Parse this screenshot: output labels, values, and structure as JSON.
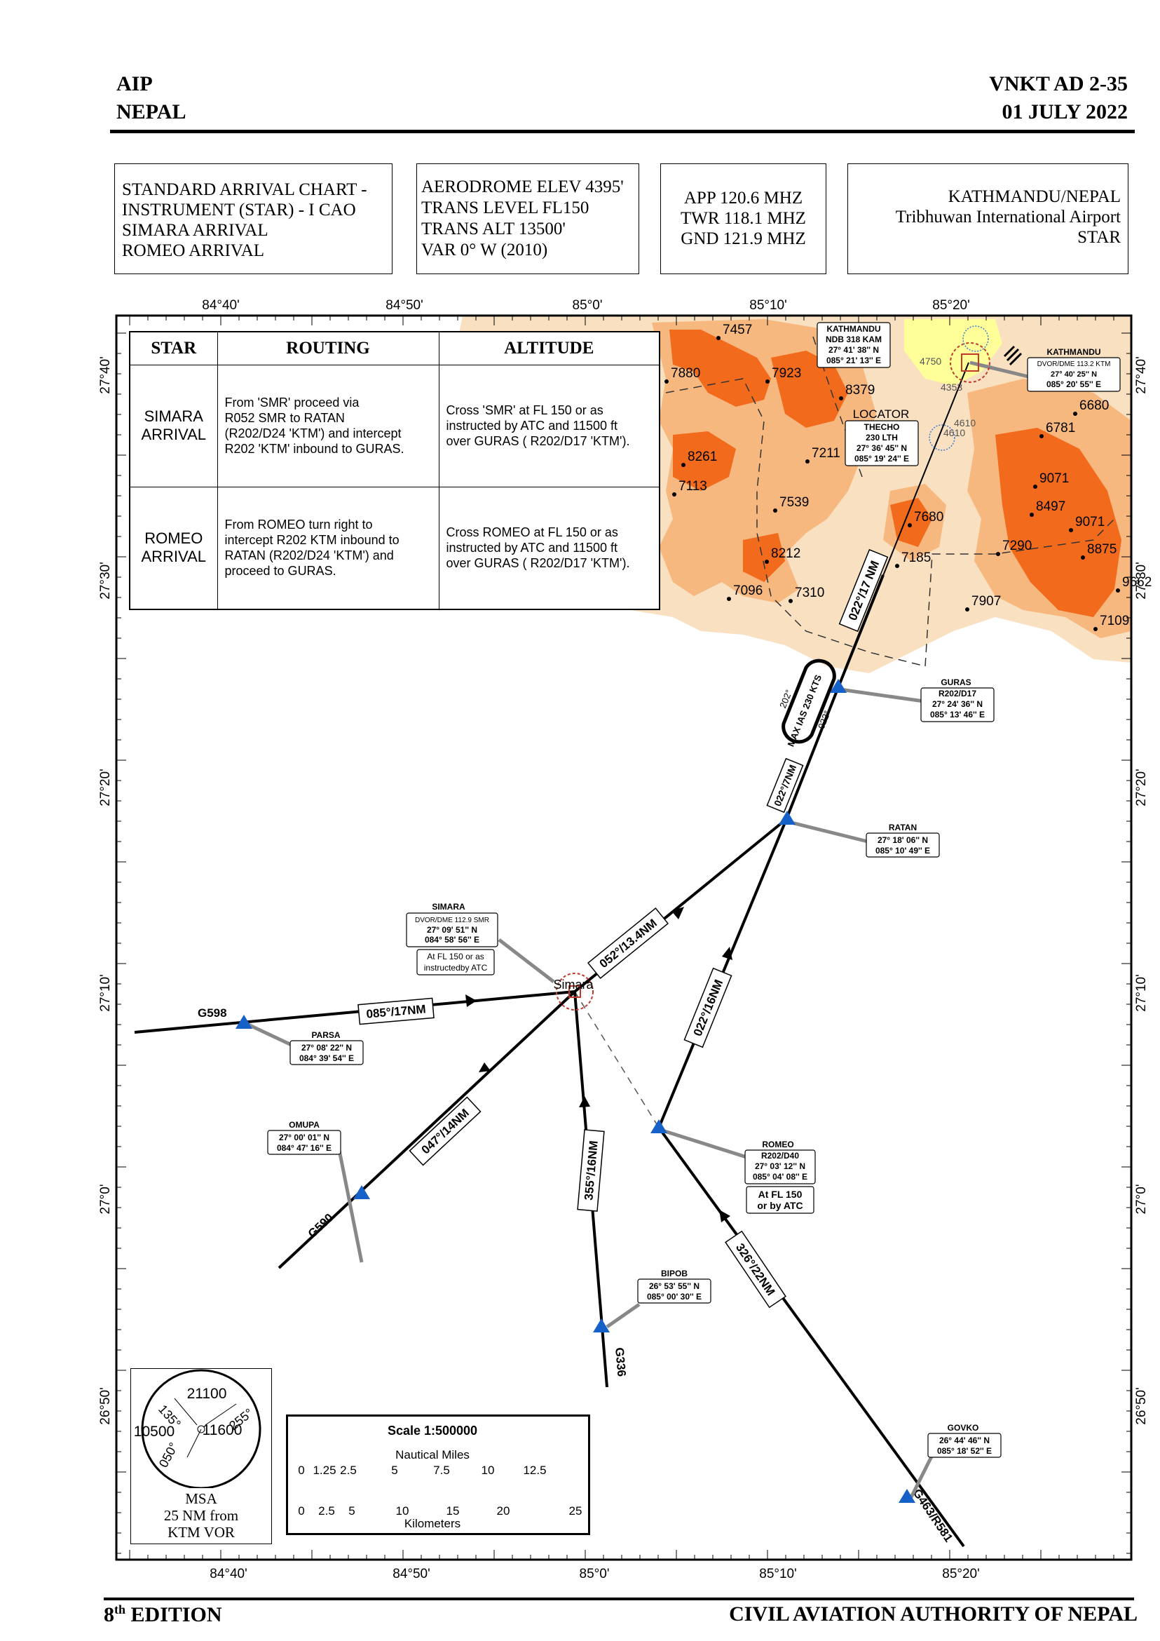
{
  "header": {
    "left_line1": "AIP",
    "left_line2": "NEPAL",
    "right_line1": "VNKT AD 2-35",
    "right_line2": "01 JULY 2022"
  },
  "info_boxes": {
    "chart": [
      "STANDARD ARRIVAL CHART -",
      "INSTRUMENT (STAR) - I CAO",
      "SIMARA ARRIVAL",
      "ROMEO ARRIVAL"
    ],
    "aerodrome": [
      "AERODROME ELEV 4395'",
      "TRANS LEVEL FL150",
      "TRANS ALT 13500'",
      "VAR 0° W (2010)"
    ],
    "frequencies": [
      "APP 120.6 MHZ",
      "TWR 118.1 MHZ",
      "GND 121.9 MHZ"
    ],
    "airport": [
      "KATHMANDU/NEPAL",
      "Tribhuwan International Airport",
      "STAR"
    ]
  },
  "grid": {
    "longitude_labels": [
      "84°40'",
      "84°50'",
      "85°0'",
      "85°10'",
      "85°20'"
    ],
    "latitude_labels": [
      "27°40'",
      "27°30'",
      "27°20'",
      "27°10'",
      "27°0'",
      "26°50'"
    ]
  },
  "star_table": {
    "headers": [
      "STAR",
      "ROUTING",
      "ALTITUDE"
    ],
    "rows": [
      {
        "name_line1": "SIMARA",
        "name_line2": "ARRIVAL",
        "routing": [
          "From 'SMR'  proceed via",
          "R052 SMR to RATAN",
          "(R202/D24 'KTM') and intercept",
          "R202 'KTM' inbound to GURAS."
        ],
        "altitude": [
          "Cross 'SMR' at FL 150 or as",
          "instructed by ATC and 11500 ft",
          "over GURAS ( R202/D17 'KTM')."
        ]
      },
      {
        "name_line1": "ROMEO",
        "name_line2": "ARRIVAL",
        "routing": [
          "From ROMEO turn right to",
          "intercept R202 KTM inbound to",
          "RATAN (R202/D24 'KTM') and",
          "proceed to GURAS."
        ],
        "altitude": [
          "Cross ROMEO at FL 150 or as",
          "instructed by ATC and 11500 ft",
          "over GURAS ( R202/D17 'KTM')."
        ]
      }
    ]
  },
  "waypoints": {
    "simara": {
      "lines": [
        "SIMARA",
        "DVOR/DME 112.9 SMR",
        "27° 09' 51'' N",
        "084° 58' 56'' E"
      ],
      "note": [
        "At FL 150 or as",
        "instructedby ATC"
      ],
      "map_label": "Simara"
    },
    "parsa": {
      "lines": [
        "PARSA",
        "27° 08' 22'' N",
        "084° 39' 54'' E"
      ]
    },
    "omupa": {
      "lines": [
        "OMUPA",
        "27° 00' 01'' N",
        "084° 47' 16'' E"
      ]
    },
    "romeo": {
      "lines": [
        "ROMEO",
        "R202/D40",
        "27° 03' 12'' N",
        "085° 04' 08'' E"
      ],
      "note": [
        "At FL 150",
        "or by ATC"
      ]
    },
    "bipob": {
      "lines": [
        "BIPOB",
        "26° 53' 55'' N",
        "085° 00' 30'' E"
      ]
    },
    "govko": {
      "lines": [
        "GOVKO",
        "26° 44' 46'' N",
        "085° 18' 52'' E"
      ]
    },
    "ratan": {
      "lines": [
        "RATAN",
        "27° 18' 06'' N",
        "085° 10' 49'' E"
      ]
    },
    "guras": {
      "lines": [
        "GURAS",
        "R202/D17",
        "27° 24' 36'' N",
        "085° 13' 46'' E"
      ]
    },
    "kathmandu_ndb": {
      "lines": [
        "KATHMANDU",
        "NDB 318 KAM",
        "27° 41' 38'' N",
        "085° 21' 13'' E"
      ]
    },
    "kathmandu_dvor": {
      "lines": [
        "KATHMANDU",
        "DVOR/DME 113.2 KTM",
        "27° 40' 25'' N",
        "085° 20' 55'' E"
      ]
    },
    "locator": {
      "title": "LOCATOR",
      "lines": [
        "THECHO",
        "230 LTH",
        "27° 36' 45'' N",
        "085° 19' 24'' E"
      ]
    }
  },
  "airways": {
    "g598": "G598",
    "g590": "G590",
    "g336": "G336",
    "g463": "G463/R581"
  },
  "legs": {
    "parsa_simara": "085°/17NM",
    "omupa_simara": "047°/14NM",
    "bipob_simara": "355°/16NM",
    "simara_ratan": "052°/13.4NM",
    "romeo_ratan": "022°/16NM",
    "govko_romeo": "326°/22NM",
    "ratan_guras": "022°/7NM",
    "guras_ktm": "022°/17 NM"
  },
  "holding": {
    "inbound": "202°",
    "outbound": "022°",
    "speed": "MAX IAS 230 KTS"
  },
  "terrain_elevations": [
    "7457",
    "7880",
    "7923",
    "8379",
    "6680",
    "6781",
    "8261",
    "7211",
    "7113",
    "7539",
    "9071",
    "8497",
    "9071",
    "7680",
    "8212",
    "7185",
    "7290",
    "8875",
    "7096",
    "7310",
    "9662",
    "7907",
    "7109",
    "4610",
    "4610",
    "4750",
    "4353"
  ],
  "msa": {
    "top": "21100",
    "left": "10500",
    "center": "11600",
    "bearing_a": "135°",
    "bearing_b": "255°",
    "bearing_c": "050°",
    "caption": [
      "MSA",
      "25 NM from",
      "KTM VOR"
    ]
  },
  "scale": {
    "title": "Scale  1:500000",
    "nm_caption": "Nautical Miles",
    "nm_ticks": [
      "0",
      "1.25",
      "2.5",
      "5",
      "7.5",
      "10",
      "12.5"
    ],
    "km_ticks": [
      "0",
      "2.5",
      "5",
      "10",
      "15",
      "20",
      "25"
    ],
    "km_caption": "Kilometers"
  },
  "footer": {
    "edition_num": "8",
    "edition_sup": "th",
    "edition_word": " EDITION",
    "right": "CIVIL AVIATION AUTHORITY OF NEPAL"
  },
  "colors": {
    "terrain_low": "#f9e0c0",
    "terrain_mid": "#f7b87f",
    "terrain_high": "#f26a1c",
    "terrain_peak": "#e24a0e",
    "navaid_blue": "#1561c8",
    "vor_red": "#c0392b"
  }
}
